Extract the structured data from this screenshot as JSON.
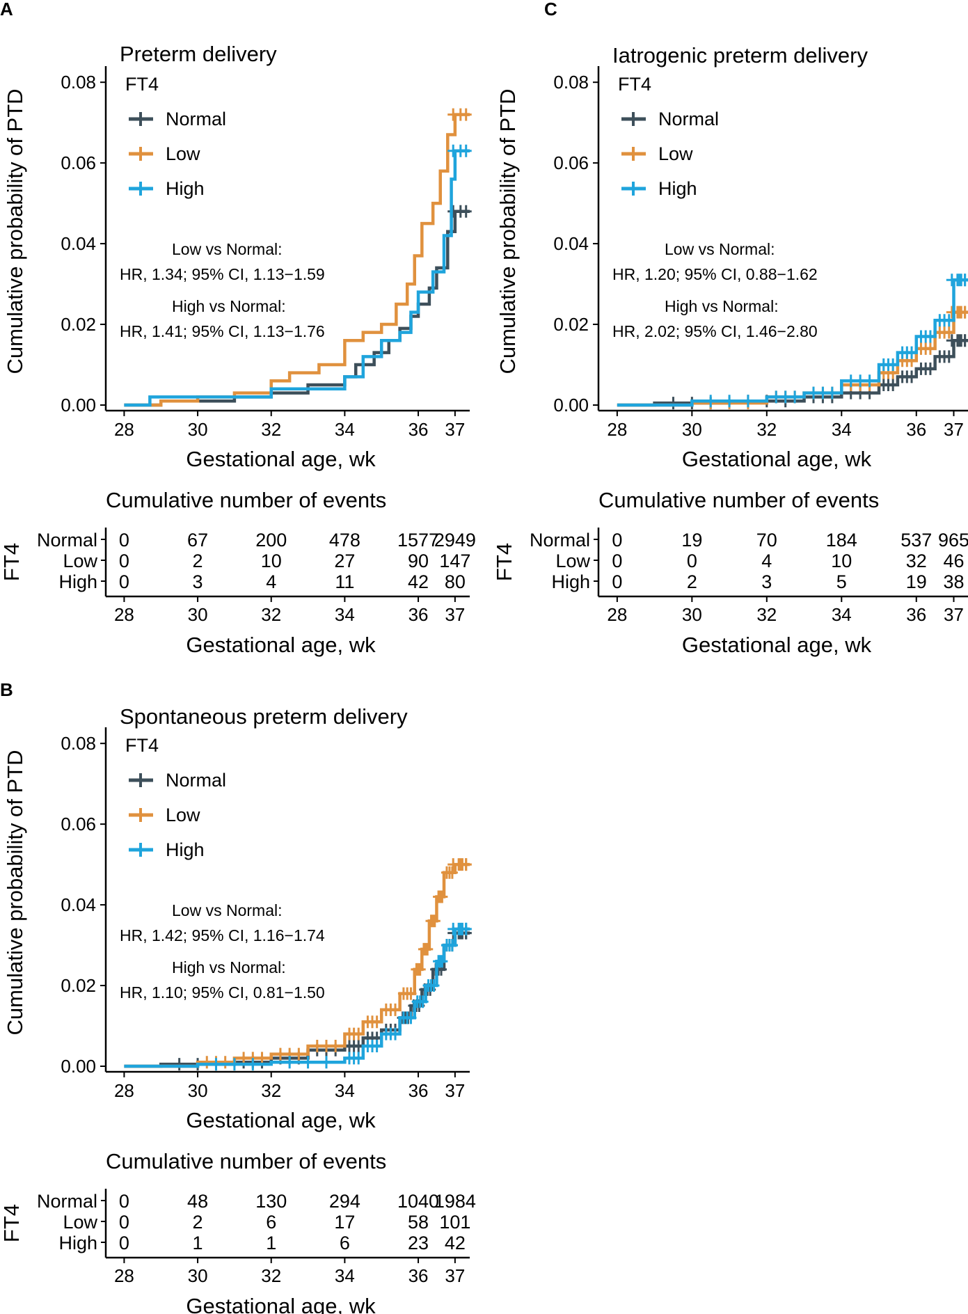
{
  "colors": {
    "normal": "#3d4f5a",
    "low": "#e0913e",
    "high": "#1fa4dc",
    "axis": "#000000"
  },
  "common": {
    "xlabel": "Gestational age, wk",
    "ylabel": "Cumulative probability of PTD",
    "xticks": [
      28,
      30,
      32,
      34,
      36,
      37
    ],
    "yticks": [
      "0.00",
      "0.02",
      "0.04",
      "0.06",
      "0.08"
    ],
    "legend_title": "FT4",
    "legend_labels": [
      "Normal",
      "Low",
      "High"
    ],
    "risk_title": "Cumulative number of events",
    "risk_ylabel": "FT4"
  },
  "chart_data": [
    {
      "type": "line",
      "panel": "A",
      "title": "Preterm delivery",
      "xlim": [
        27.5,
        37.4
      ],
      "ylim": [
        0,
        0.084
      ],
      "annotations": [
        "Low vs Normal:",
        "HR, 1.34; 95% CI, 1.13−1.59",
        "High vs Normal:",
        "HR, 1.41; 95% CI, 1.13−1.76"
      ],
      "series": [
        {
          "name": "Normal",
          "key": "normal",
          "censor": false,
          "points": [
            [
              28,
              0
            ],
            [
              29,
              0.001
            ],
            [
              31,
              0.002
            ],
            [
              32,
              0.003
            ],
            [
              33,
              0.005
            ],
            [
              34,
              0.007
            ],
            [
              34.3,
              0.01
            ],
            [
              34.8,
              0.013
            ],
            [
              35.2,
              0.016
            ],
            [
              35.5,
              0.019
            ],
            [
              35.8,
              0.022
            ],
            [
              36.0,
              0.025
            ],
            [
              36.3,
              0.029
            ],
            [
              36.5,
              0.034
            ],
            [
              36.8,
              0.043
            ],
            [
              37.0,
              0.048
            ],
            [
              37.4,
              0.048
            ]
          ],
          "risk": [
            "0",
            "67",
            "200",
            "478",
            "1577",
            "2949"
          ]
        },
        {
          "name": "Low",
          "key": "low",
          "censor": false,
          "points": [
            [
              28,
              0
            ],
            [
              29,
              0.001
            ],
            [
              30,
              0.002
            ],
            [
              31,
              0.003
            ],
            [
              32,
              0.006
            ],
            [
              32.5,
              0.008
            ],
            [
              33.3,
              0.01
            ],
            [
              34,
              0.016
            ],
            [
              34.5,
              0.018
            ],
            [
              35,
              0.02
            ],
            [
              35.4,
              0.025
            ],
            [
              35.7,
              0.03
            ],
            [
              35.9,
              0.037
            ],
            [
              36.1,
              0.045
            ],
            [
              36.4,
              0.05
            ],
            [
              36.6,
              0.058
            ],
            [
              36.8,
              0.067
            ],
            [
              37.0,
              0.072
            ],
            [
              37.4,
              0.072
            ]
          ],
          "risk": [
            "0",
            "2",
            "10",
            "27",
            "90",
            "147"
          ]
        },
        {
          "name": "High",
          "key": "high",
          "censor": false,
          "points": [
            [
              28,
              0
            ],
            [
              28.7,
              0.002
            ],
            [
              31,
              0.002
            ],
            [
              32,
              0.004
            ],
            [
              34,
              0.007
            ],
            [
              34.5,
              0.012
            ],
            [
              35,
              0.016
            ],
            [
              35.5,
              0.018
            ],
            [
              35.8,
              0.023
            ],
            [
              36,
              0.028
            ],
            [
              36.4,
              0.033
            ],
            [
              36.7,
              0.042
            ],
            [
              36.9,
              0.056
            ],
            [
              37.0,
              0.063
            ],
            [
              37.4,
              0.063
            ]
          ],
          "risk": [
            "0",
            "3",
            "4",
            "11",
            "42",
            "80"
          ]
        }
      ]
    },
    {
      "type": "line",
      "panel": "B",
      "title": "Spontaneous preterm delivery",
      "xlim": [
        27.5,
        37.4
      ],
      "ylim": [
        0,
        0.084
      ],
      "annotations": [
        "Low vs Normal:",
        "HR, 1.42; 95% CI, 1.16−1.74",
        "High vs Normal:",
        "HR, 1.10; 95% CI, 0.81−1.50"
      ],
      "series": [
        {
          "name": "Normal",
          "key": "normal",
          "censor": true,
          "points": [
            [
              28,
              0
            ],
            [
              29,
              0.0005
            ],
            [
              31,
              0.001
            ],
            [
              32,
              0.002
            ],
            [
              33,
              0.004
            ],
            [
              34,
              0.005
            ],
            [
              34.5,
              0.007
            ],
            [
              35,
              0.009
            ],
            [
              35.5,
              0.012
            ],
            [
              35.8,
              0.015
            ],
            [
              36.1,
              0.019
            ],
            [
              36.4,
              0.024
            ],
            [
              36.7,
              0.03
            ],
            [
              37.0,
              0.033
            ],
            [
              37.4,
              0.033
            ]
          ],
          "risk": [
            "0",
            "48",
            "130",
            "294",
            "1040",
            "1984"
          ]
        },
        {
          "name": "Low",
          "key": "low",
          "censor": true,
          "points": [
            [
              28,
              0
            ],
            [
              30,
              0.001
            ],
            [
              31,
              0.002
            ],
            [
              32,
              0.003
            ],
            [
              33,
              0.005
            ],
            [
              34,
              0.008
            ],
            [
              34.5,
              0.011
            ],
            [
              35,
              0.014
            ],
            [
              35.5,
              0.018
            ],
            [
              35.9,
              0.024
            ],
            [
              36.1,
              0.029
            ],
            [
              36.3,
              0.036
            ],
            [
              36.5,
              0.042
            ],
            [
              36.7,
              0.048
            ],
            [
              37.0,
              0.05
            ],
            [
              37.4,
              0.05
            ]
          ],
          "risk": [
            "0",
            "2",
            "6",
            "17",
            "58",
            "101"
          ]
        },
        {
          "name": "High",
          "key": "high",
          "censor": true,
          "points": [
            [
              28,
              0
            ],
            [
              30,
              0.0005
            ],
            [
              32,
              0.001
            ],
            [
              34,
              0.002
            ],
            [
              34.5,
              0.005
            ],
            [
              35,
              0.008
            ],
            [
              35.5,
              0.012
            ],
            [
              35.9,
              0.016
            ],
            [
              36.2,
              0.02
            ],
            [
              36.5,
              0.026
            ],
            [
              36.7,
              0.03
            ],
            [
              37.0,
              0.034
            ],
            [
              37.4,
              0.034
            ]
          ],
          "risk": [
            "0",
            "1",
            "1",
            "6",
            "23",
            "42"
          ]
        }
      ]
    },
    {
      "type": "line",
      "panel": "C",
      "title": "Iatrogenic preterm delivery",
      "xlim": [
        27.5,
        37.4
      ],
      "ylim": [
        0,
        0.084
      ],
      "annotations": [
        "Low vs Normal:",
        "HR, 1.20; 95% CI, 0.88−1.62",
        "High vs Normal:",
        "HR, 2.02; 95% CI, 1.46−2.80"
      ],
      "series": [
        {
          "name": "Normal",
          "key": "normal",
          "censor": true,
          "points": [
            [
              28,
              0
            ],
            [
              29,
              0.0005
            ],
            [
              31,
              0.001
            ],
            [
              33,
              0.002
            ],
            [
              34,
              0.003
            ],
            [
              35,
              0.005
            ],
            [
              35.5,
              0.007
            ],
            [
              36,
              0.009
            ],
            [
              36.5,
              0.012
            ],
            [
              37.0,
              0.016
            ],
            [
              37.4,
              0.016
            ]
          ],
          "risk": [
            "0",
            "19",
            "70",
            "184",
            "537",
            "965"
          ]
        },
        {
          "name": "Low",
          "key": "low",
          "censor": true,
          "points": [
            [
              28,
              0
            ],
            [
              30,
              0.0005
            ],
            [
              32,
              0.002
            ],
            [
              33,
              0.003
            ],
            [
              34,
              0.005
            ],
            [
              35,
              0.008
            ],
            [
              35.5,
              0.011
            ],
            [
              36,
              0.014
            ],
            [
              36.5,
              0.018
            ],
            [
              37.0,
              0.023
            ],
            [
              37.4,
              0.023
            ]
          ],
          "risk": [
            "0",
            "0",
            "4",
            "10",
            "32",
            "46"
          ]
        },
        {
          "name": "High",
          "key": "high",
          "censor": true,
          "points": [
            [
              28,
              0
            ],
            [
              30,
              0.001
            ],
            [
              32,
              0.002
            ],
            [
              33,
              0.003
            ],
            [
              34,
              0.006
            ],
            [
              35,
              0.01
            ],
            [
              35.5,
              0.013
            ],
            [
              36,
              0.017
            ],
            [
              36.5,
              0.021
            ],
            [
              37.0,
              0.031
            ],
            [
              37.4,
              0.031
            ]
          ],
          "risk": [
            "0",
            "2",
            "3",
            "5",
            "19",
            "38"
          ]
        }
      ]
    }
  ]
}
